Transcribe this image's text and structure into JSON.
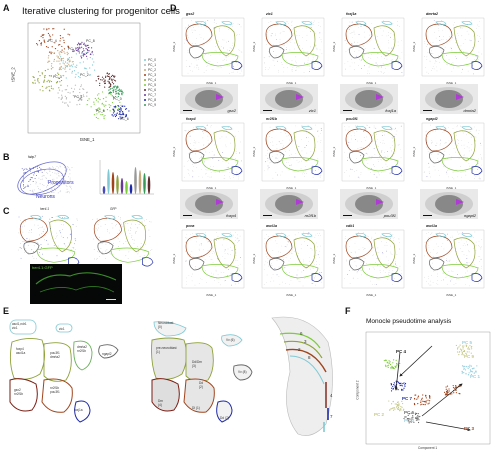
{
  "panels": {
    "A": {
      "letter": "A",
      "title": "Iterative clustering for progenitor cells",
      "ylabel": "tSNE_2",
      "xlabel": "tSNE_1",
      "clusters": [
        "PC_4",
        "PC_3",
        "PC_2",
        "PC_1",
        "PC_0",
        "PC_7",
        "PC_5",
        "PC_6",
        "PC_8",
        "PC_9"
      ],
      "legend": [
        "PC_0",
        "PC_1",
        "PC_2",
        "PC_3",
        "PC_4",
        "PC_5",
        "PC_6",
        "PC_7",
        "PC_8",
        "PC_9"
      ]
    },
    "B": {
      "letter": "B",
      "gene": "fabp7",
      "progenitors": "Progenitors",
      "neurons": "Neurons"
    },
    "C": {
      "letter": "C",
      "gene1": "her4.1",
      "gene2": "GFP",
      "caption": "her4.1:GFP"
    },
    "D": {
      "letter": "D",
      "row1": [
        "gsx2",
        "zic1",
        "foxj1a",
        "dmrta2"
      ],
      "row2": [
        "foxp4",
        "nr2f1b",
        "pou3f1",
        "ngapl2"
      ],
      "row3": [
        "pcna",
        "ascl1a",
        "cdk1",
        "ascl1a"
      ],
      "row1_img": [
        "gsx2",
        "zic1",
        "foxj1a",
        "dmrta2"
      ],
      "row2_img": [
        "foxp4",
        "nr2f1b",
        "pou3f1",
        "ngapl2"
      ],
      "axis_x": "tSNE_1",
      "axis_y": "tSNE_2"
    },
    "E": {
      "letter": "E",
      "left_labels": [
        "ascl1,ndr1\nzic1",
        "zic1",
        "foxp4\nascl1a",
        "pou3f1\ndmrta2",
        "dmrta2\nnr2f1b",
        "ngapl2",
        "gsx2\nnr2f1b",
        "nr2f1b\npou3f1",
        "foxj1a"
      ],
      "right_labels": [
        "Neuroblast\n(0)",
        "pre-neuroblast\n(1)",
        "Vv (6)",
        "Dd/Dm\n(3)",
        "Dd\n(2)",
        "Vv (8)",
        "Dm\n(4)",
        "Dl (1)",
        "Dd (7)"
      ],
      "brain_numbers": [
        "6",
        "3",
        "2",
        "8",
        "4",
        "7"
      ]
    },
    "F": {
      "letter": "F",
      "title": "Monocle pseudotime analysis",
      "labels": [
        "PC 4",
        "PC 5",
        "PC 7",
        "PC 1",
        "PC 6",
        "PC 0",
        "PC 2",
        "PC 3",
        "PC 9"
      ],
      "xlabel": "Component 1",
      "ylabel": "Component 2"
    }
  },
  "colors": {
    "brown": "#a0441c",
    "olive": "#8fa23a",
    "teal": "#7fc9d4",
    "navy": "#1e2ba8",
    "maroon": "#7a1c12",
    "lime": "#7ccc3c",
    "purple": "#6a3a98",
    "magenta": "#b03ad6"
  }
}
